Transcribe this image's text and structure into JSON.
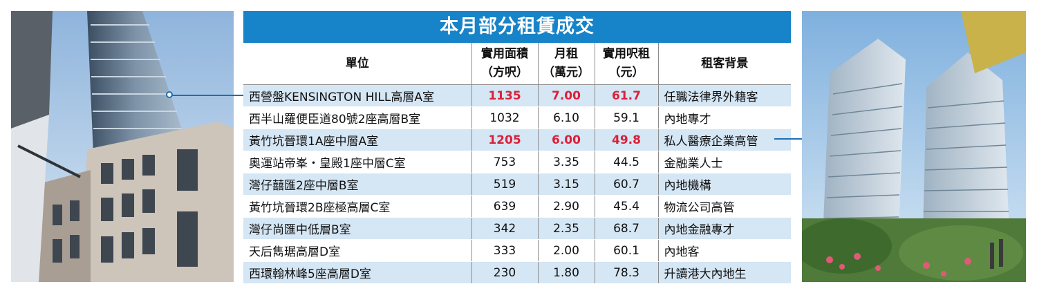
{
  "title": "本月部分租賃成交",
  "headers": {
    "unit": "單位",
    "area": "實用面積",
    "area_unit": "（方呎）",
    "rent": "月租",
    "rent_unit": "（萬元）",
    "psf": "實用呎租",
    "psf_unit": "（元）",
    "tenant": "租客背景"
  },
  "rows": [
    {
      "unit": "西營盤KENSINGTON HILL高層A室",
      "area": "1135",
      "rent": "7.00",
      "psf": "61.7",
      "tenant": "任職法律界外籍客",
      "highlight": true
    },
    {
      "unit": "西半山羅便臣道80號2座高層B室",
      "area": "1032",
      "rent": "6.10",
      "psf": "59.1",
      "tenant": "內地專才",
      "highlight": false
    },
    {
      "unit": "黃竹坑晉環1A座中層A室",
      "area": "1205",
      "rent": "6.00",
      "psf": "49.8",
      "tenant": "私人醫療企業高管",
      "highlight": true
    },
    {
      "unit": "奧運站帝峯・皇殿1座中層C室",
      "area": "753",
      "rent": "3.35",
      "psf": "44.5",
      "tenant": "金融業人士",
      "highlight": false
    },
    {
      "unit": "灣仔囍匯2座中層B室",
      "area": "519",
      "rent": "3.15",
      "psf": "60.7",
      "tenant": "內地機構",
      "highlight": false
    },
    {
      "unit": "黃竹坑晉環2B座極高層C室",
      "area": "639",
      "rent": "2.90",
      "psf": "45.4",
      "tenant": "物流公司高管",
      "highlight": false
    },
    {
      "unit": "灣仔尚匯中低層B室",
      "area": "342",
      "rent": "2.35",
      "psf": "68.7",
      "tenant": "內地金融專才",
      "highlight": false
    },
    {
      "unit": "天后雋琚高層D室",
      "area": "333",
      "rent": "2.00",
      "psf": "60.1",
      "tenant": "內地客",
      "highlight": false
    },
    {
      "unit": "西環翰林峰5座高層D室",
      "area": "230",
      "rent": "1.80",
      "psf": "78.3",
      "tenant": "升讀港大內地生",
      "highlight": false
    }
  ],
  "colors": {
    "title_bg": "#1783c8",
    "stripe": "#d5e6f4",
    "highlight_text": "#d8213a",
    "callout": "#1b6fb5"
  }
}
